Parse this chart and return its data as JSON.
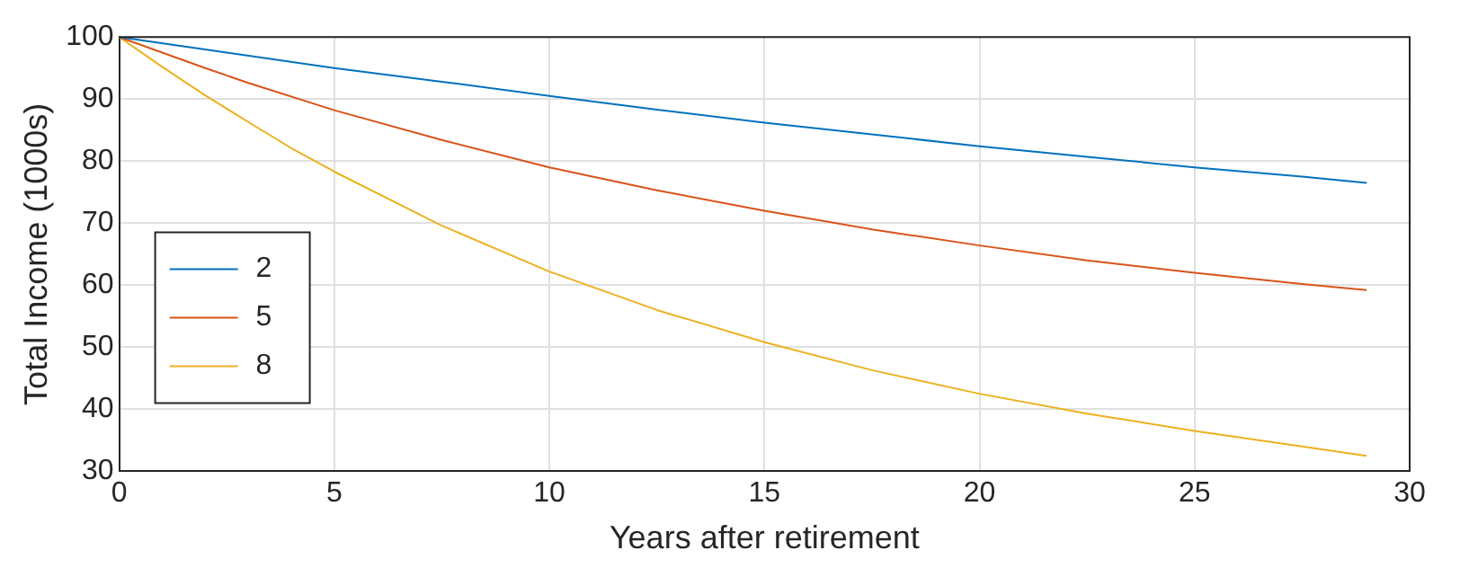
{
  "chart_data": {
    "type": "line",
    "xlabel": "Years after retirement",
    "ylabel": "Total Income (1000s)",
    "xlim": [
      0,
      30
    ],
    "xticks": [
      0,
      5,
      10,
      15,
      20,
      25,
      30
    ],
    "ylim": [
      30,
      100
    ],
    "yticks": [
      30,
      40,
      50,
      60,
      70,
      80,
      90,
      100
    ],
    "grid": true,
    "legend": "bottom left",
    "marker": "none",
    "line_style": "solid",
    "series": [
      {
        "name": "2",
        "color": "#0072bd",
        "x": [
          0,
          2.5,
          5,
          7.5,
          10,
          12.5,
          15,
          17.5,
          20,
          22.5,
          25,
          27.5,
          29
        ],
        "values": [
          100,
          97.5,
          95,
          92.8,
          90.5,
          88.3,
          86.2,
          84.3,
          82.4,
          80.7,
          79,
          77.5,
          76.5
        ]
      },
      {
        "name": "5",
        "color": "#d95319",
        "x": [
          0,
          1,
          2,
          3,
          5,
          7.5,
          10,
          12.5,
          15,
          17.5,
          20,
          22.5,
          25,
          27.5,
          29
        ],
        "values": [
          100,
          97.5,
          95,
          92.6,
          88.2,
          83.4,
          79,
          75.3,
          72,
          69,
          66.4,
          64,
          62,
          60.2,
          59.2
        ]
      },
      {
        "name": "8",
        "color": "#edb120",
        "x": [
          0,
          1,
          2,
          3,
          4,
          5,
          7.5,
          10,
          12.5,
          15,
          17.5,
          20,
          22.5,
          25,
          27.5,
          29
        ],
        "values": [
          100,
          95.2,
          90.6,
          86.3,
          82.1,
          78.3,
          69.6,
          62.2,
          56,
          50.8,
          46.3,
          42.5,
          39.3,
          36.5,
          34,
          32.5
        ]
      }
    ]
  }
}
